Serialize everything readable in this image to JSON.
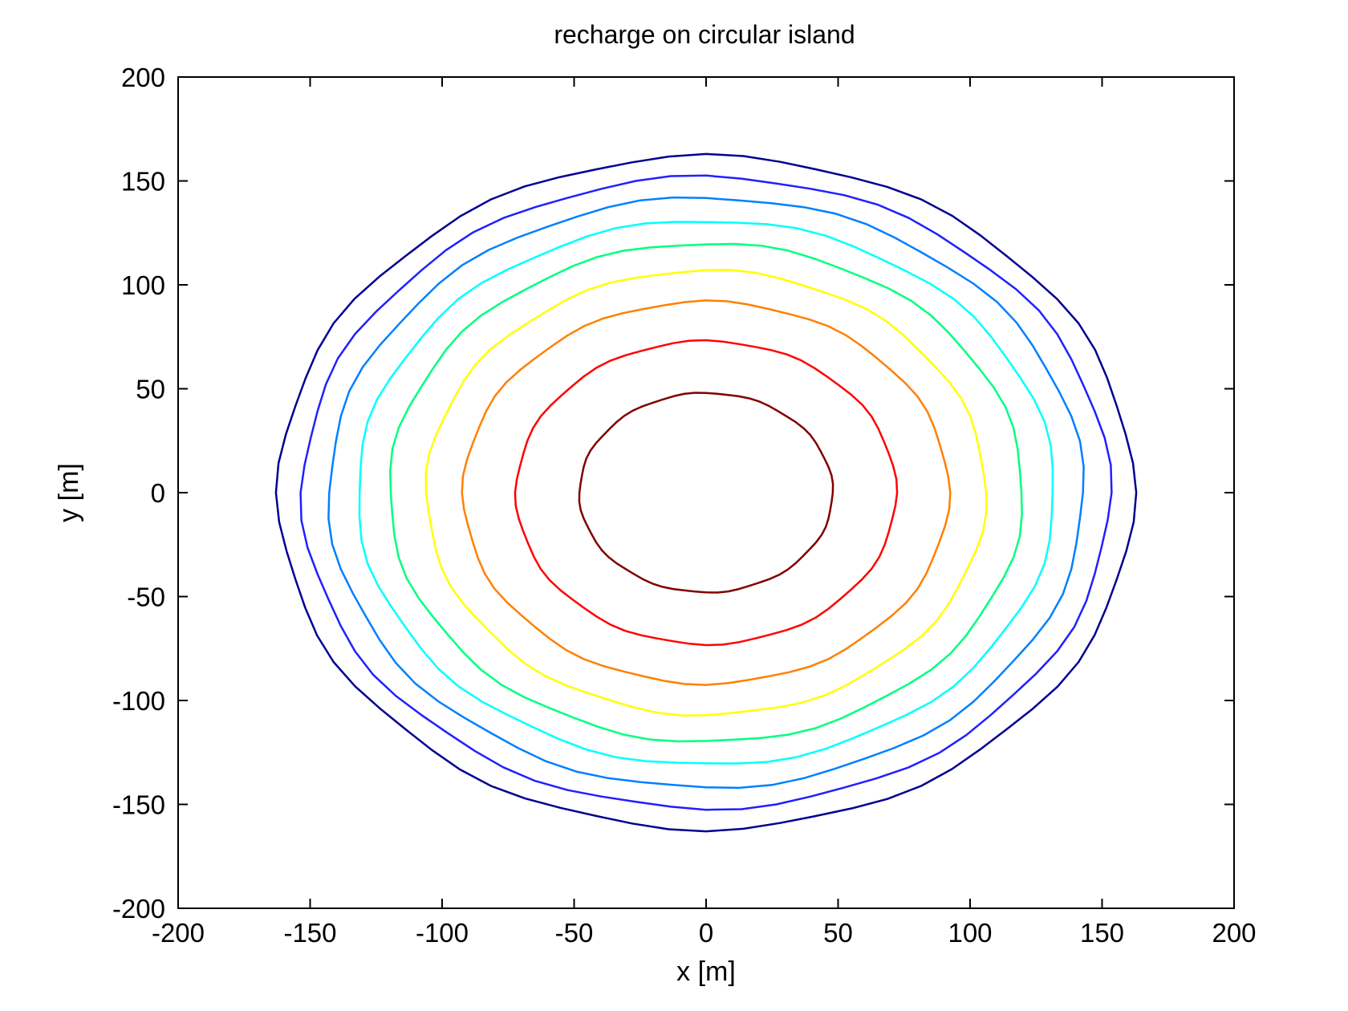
{
  "chart_data": {
    "type": "contour",
    "title": "recharge on circular island",
    "xlabel": "x [m]",
    "ylabel": "y [m]",
    "xlim": [
      -200,
      200
    ],
    "ylim": [
      -200,
      200
    ],
    "xticks": [
      -200,
      -150,
      -100,
      -50,
      0,
      50,
      100,
      150,
      200
    ],
    "yticks": [
      -200,
      -150,
      -100,
      -50,
      0,
      50,
      100,
      150,
      200
    ],
    "tick_labels_x": [
      "-200",
      "-150",
      "-100",
      "-50",
      "0",
      "50",
      "100",
      "150",
      "200"
    ],
    "tick_labels_y": [
      "-200",
      "-150",
      "-100",
      "-50",
      "0",
      "50",
      "100",
      "150",
      "200"
    ],
    "grid": false,
    "legend": "none",
    "center": [
      0,
      0
    ],
    "contours": [
      {
        "rx": 48,
        "ry": 48,
        "color": "#800000"
      },
      {
        "rx": 72,
        "ry": 73,
        "color": "#ff0000"
      },
      {
        "rx": 92,
        "ry": 92,
        "color": "#ff8000"
      },
      {
        "rx": 106,
        "ry": 107,
        "color": "#ffff00"
      },
      {
        "rx": 120,
        "ry": 120,
        "color": "#00ff80"
      },
      {
        "rx": 132,
        "ry": 131,
        "color": "#00ffff"
      },
      {
        "rx": 143,
        "ry": 142,
        "color": "#0080ff"
      },
      {
        "rx": 153,
        "ry": 152,
        "color": "#2020ff"
      },
      {
        "rx": 162,
        "ry": 162,
        "color": "#000090"
      }
    ]
  }
}
